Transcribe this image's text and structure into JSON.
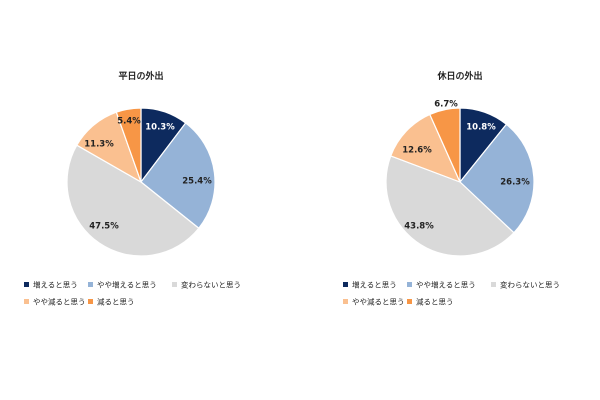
{
  "legend_labels": [
    "増えると思う",
    "やや増えると思う",
    "変わらないと思う",
    "やや減ると思う",
    "減ると思う"
  ],
  "colors": [
    "#0d2a5e",
    "#95b3d7",
    "#d9d9d9",
    "#fac090",
    "#f79646"
  ],
  "chart_data": [
    {
      "type": "pie",
      "title": "平日の外出",
      "categories": [
        "増えると思う",
        "やや増えると思う",
        "変わらないと思う",
        "やや減ると思う",
        "減ると思う"
      ],
      "values": [
        10.3,
        25.4,
        47.5,
        11.3,
        5.4
      ],
      "value_labels": [
        "10.3%",
        "25.4%",
        "47.5%",
        "11.3%",
        "5.4%"
      ]
    },
    {
      "type": "pie",
      "title": "休日の外出",
      "categories": [
        "増えると思う",
        "やや増えると思う",
        "変わらないと思う",
        "やや減ると思う",
        "減ると思う"
      ],
      "values": [
        10.8,
        26.3,
        43.8,
        12.6,
        6.7
      ],
      "value_labels": [
        "10.8%",
        "26.3%",
        "43.8%",
        "12.6%",
        "6.7%"
      ]
    }
  ]
}
